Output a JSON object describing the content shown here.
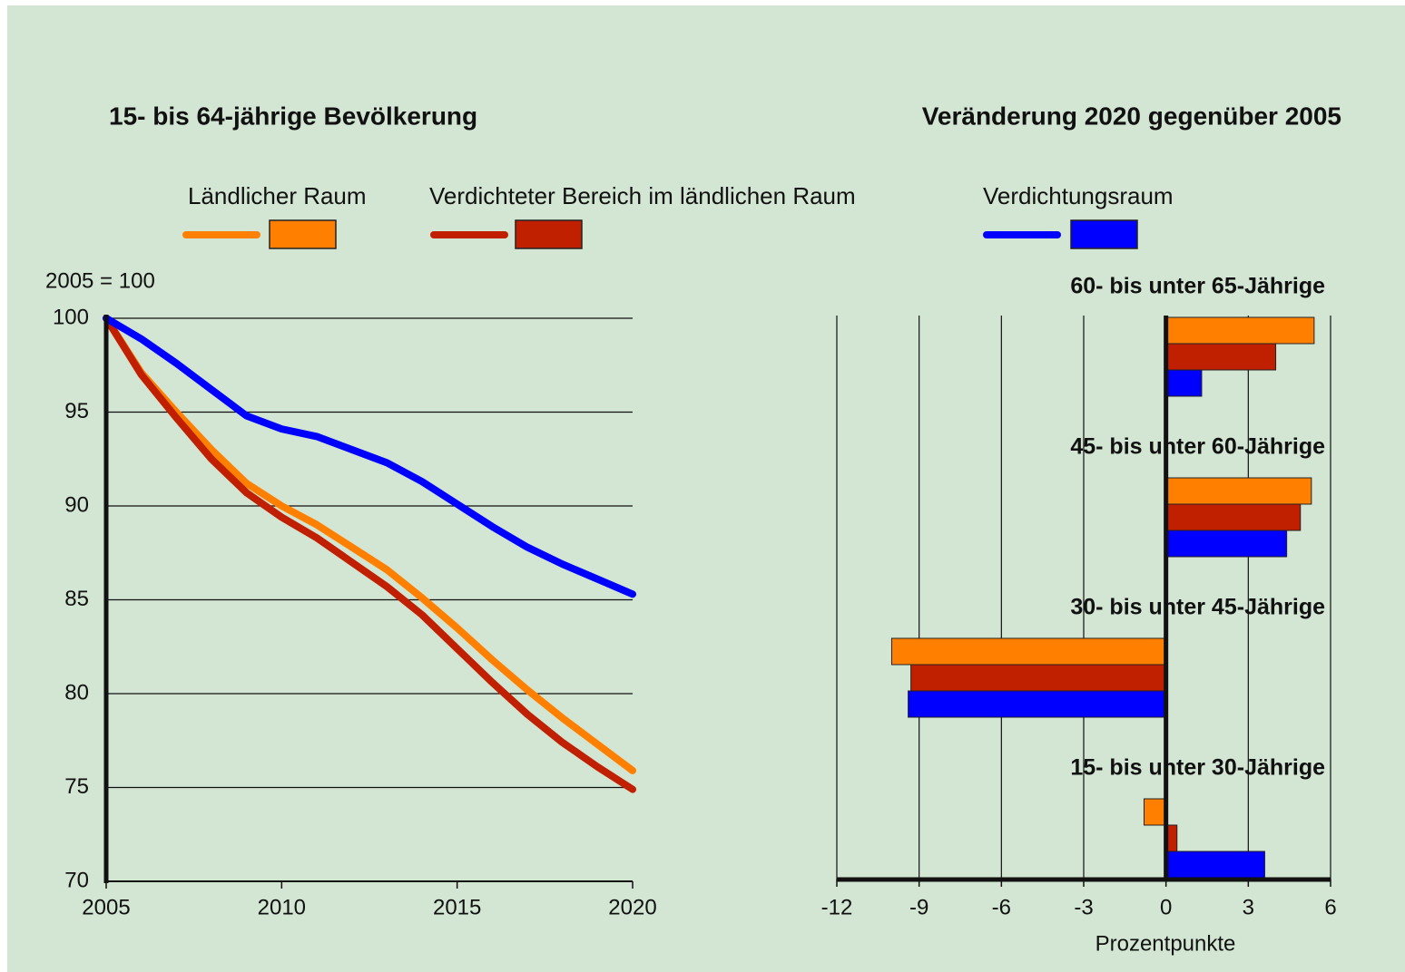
{
  "chart_data": [
    {
      "type": "line",
      "title": "15- bis 64-jährige Bevölkerung",
      "ylabel": "2005 = 100",
      "x": [
        2005,
        2006,
        2007,
        2008,
        2009,
        2010,
        2011,
        2012,
        2013,
        2014,
        2015,
        2016,
        2017,
        2018,
        2019,
        2020
      ],
      "series": [
        {
          "name": "Ländlicher Raum",
          "color": "#ff8000",
          "values": [
            100,
            97.1,
            95.0,
            93.0,
            91.2,
            90.0,
            89.0,
            87.8,
            86.6,
            85.1,
            83.5,
            81.8,
            80.2,
            78.7,
            77.3,
            75.9
          ]
        },
        {
          "name": "Verdichteter Bereich im ländlichen Raum",
          "color": "#c02000",
          "values": [
            100,
            97.0,
            94.7,
            92.5,
            90.7,
            89.4,
            88.3,
            87.0,
            85.7,
            84.2,
            82.4,
            80.6,
            78.9,
            77.4,
            76.1,
            74.9
          ]
        },
        {
          "name": "Verdichtungsraum",
          "color": "#0000ff",
          "values": [
            100,
            98.9,
            97.6,
            96.2,
            94.8,
            94.1,
            93.7,
            93.0,
            92.3,
            91.3,
            90.1,
            88.9,
            87.8,
            86.9,
            86.1,
            85.3
          ]
        }
      ],
      "xlim": [
        2005,
        2020
      ],
      "xticks": [
        2005,
        2010,
        2015,
        2020
      ],
      "ylim": [
        70,
        100
      ],
      "yticks": [
        70,
        75,
        80,
        85,
        90,
        95,
        100
      ],
      "grid": true
    },
    {
      "type": "bar",
      "orientation": "horizontal",
      "title": "Veränderung 2020 gegenüber 2005",
      "xlabel": "Prozentpunkte",
      "categories": [
        "60- bis unter 65-Jährige",
        "45- bis unter 60-Jährige",
        "30- bis unter 45-Jährige",
        "15- bis unter 30-Jährige"
      ],
      "series": [
        {
          "color": "#ff8000",
          "values": [
            5.4,
            5.3,
            -10.0,
            -0.8
          ]
        },
        {
          "color": "#c02000",
          "values": [
            4.0,
            4.9,
            -9.3,
            0.4
          ]
        },
        {
          "color": "#0000ff",
          "values": [
            1.3,
            4.4,
            -9.4,
            3.6
          ]
        }
      ],
      "xlim": [
        -12,
        6
      ],
      "xticks": [
        -12,
        -9,
        -6,
        -3,
        0,
        3,
        6
      ],
      "grid": true
    }
  ]
}
